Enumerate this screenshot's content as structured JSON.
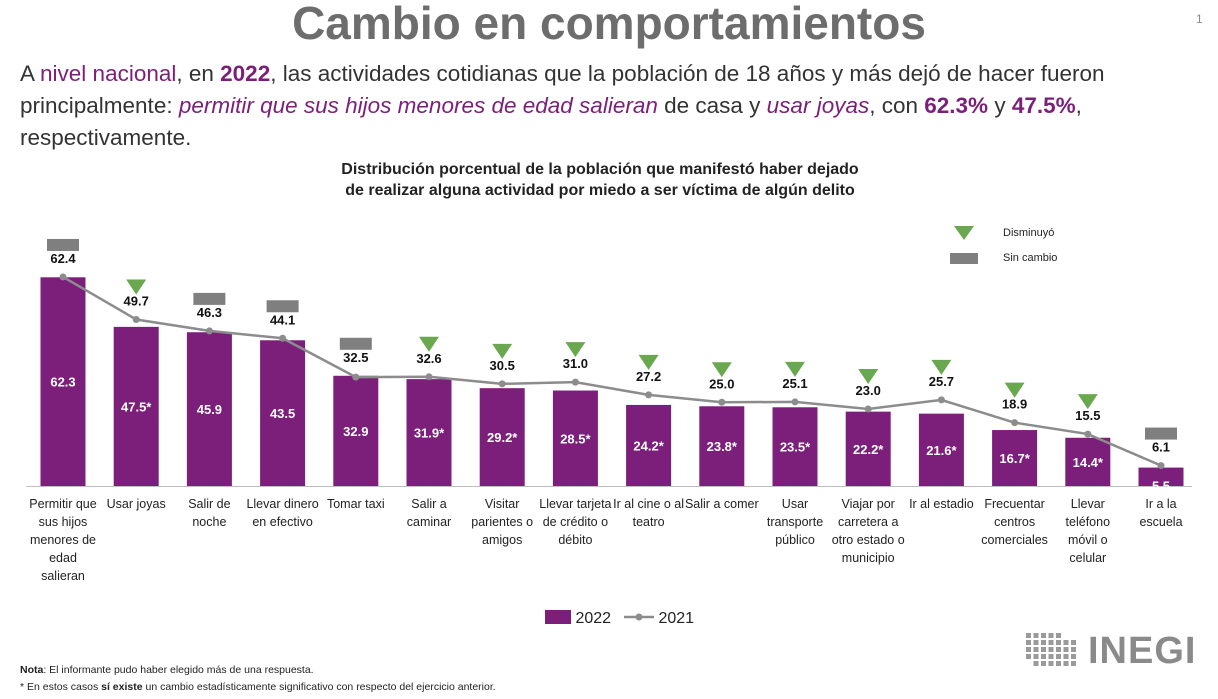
{
  "slide": {
    "title": "Cambio en comportamientos",
    "page_number": "1"
  },
  "intro": {
    "p1": "A ",
    "p2": "nivel nacional",
    "p3": ", en ",
    "p4": "2022",
    "p5": ", las actividades cotidianas que la población de 18 años y más dejó de hacer fueron principalmente: ",
    "p6": "permitir que sus hijos menores de edad salieran",
    "p7": " de casa y ",
    "p8": "usar joyas",
    "p9": ", con ",
    "p10": "62.3%",
    "p11": " y ",
    "p12": "47.5%",
    "p13": ", respectivamente."
  },
  "chart_data": {
    "type": "bar",
    "title_line1": "Distribución porcentual de la población que manifestó haber dejado",
    "title_line2": "de realizar alguna actividad por miedo a ser víctima de algún delito",
    "categories": [
      "Permitir que sus hijos menores de edad salieran",
      "Usar joyas",
      "Salir de noche",
      "Llevar dinero en efectivo",
      "Tomar taxi",
      "Salir a caminar",
      "Visitar parientes o amigos",
      "Llevar tarjeta de crédito o débito",
      "Ir al cine o al teatro",
      "Salir a comer",
      "Usar transporte público",
      "Viajar por carretera a otro estado o municipio",
      "Ir al estadio",
      "Frecuentar centros comerciales",
      "Llevar teléfono móvil o celular",
      "Ir a la escuela"
    ],
    "series": [
      {
        "name": "2022",
        "type": "bar",
        "color": "#7b1f7a",
        "values": [
          62.3,
          47.5,
          45.9,
          43.5,
          32.9,
          31.9,
          29.2,
          28.5,
          24.2,
          23.8,
          23.5,
          22.2,
          21.6,
          16.7,
          14.4,
          5.5
        ],
        "labels": [
          "62.3",
          "47.5*",
          "45.9",
          "43.5",
          "32.9",
          "31.9*",
          "29.2*",
          "28.5*",
          "24.2*",
          "23.8*",
          "23.5*",
          "22.2*",
          "21.6*",
          "16.7*",
          "14.4*",
          "5.5"
        ]
      },
      {
        "name": "2021",
        "type": "line",
        "color": "#8c8c8c",
        "values": [
          62.4,
          49.7,
          46.3,
          44.1,
          32.5,
          32.6,
          30.5,
          31.0,
          27.2,
          25.0,
          25.1,
          23.0,
          25.7,
          18.9,
          15.5,
          6.1
        ],
        "labels": [
          "62.4",
          "49.7",
          "46.3",
          "44.1",
          "32.5",
          "32.6",
          "30.5",
          "31.0",
          "27.2",
          "25.0",
          "25.1",
          "23.0",
          "25.7",
          "18.9",
          "15.5",
          "6.1"
        ]
      }
    ],
    "change_markers": [
      "sin_cambio",
      "disminuyo",
      "sin_cambio",
      "sin_cambio",
      "sin_cambio",
      "disminuyo",
      "disminuyo",
      "disminuyo",
      "disminuyo",
      "disminuyo",
      "disminuyo",
      "disminuyo",
      "disminuyo",
      "disminuyo",
      "disminuyo",
      "sin_cambio"
    ],
    "marker_legend": {
      "disminuyo": "Disminuyó",
      "sin_cambio": "Sin cambio"
    },
    "ylim": [
      0,
      70
    ],
    "legend": [
      "2022",
      "2021"
    ],
    "legend_position": "bottom-center",
    "grid": false
  },
  "colors": {
    "purple": "#7b1f7a",
    "line_gray": "#8c8c8c",
    "triangle_green": "#6aa84f",
    "marker_gray": "#7f7f7f",
    "title_gray": "#6d6d6d"
  },
  "notes": {
    "n1_bold": "Nota",
    "n1_rest": ": El informante pudo haber elegido más de una respuesta.",
    "n2_a": "* En estos casos ",
    "n2_b": "sí existe",
    "n2_c": " un cambio estadísticamente significativo con respecto del ejercicio anterior."
  },
  "logo": {
    "text": "INEGI"
  }
}
